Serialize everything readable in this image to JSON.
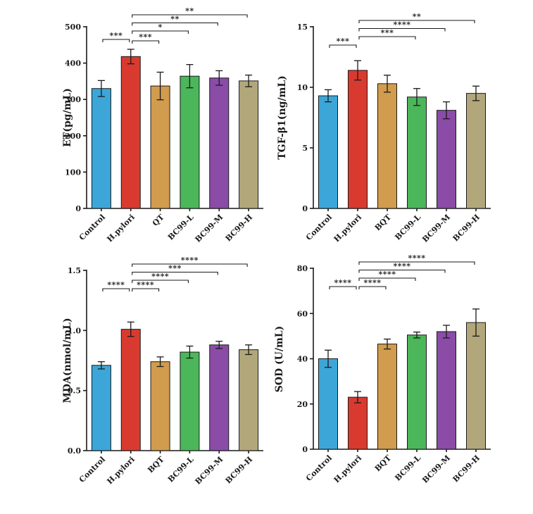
{
  "figure": {
    "colors": {
      "Control": "#3ca6d8",
      "H.pylori": "#d93a2f",
      "treatment_tan": "#d19c4e",
      "BC99-L": "#4cb65a",
      "BC99-M": "#8a4ca6",
      "BC99-H": "#b1a77a"
    }
  },
  "chart_data": [
    {
      "id": "et",
      "type": "bar",
      "ylabel": "ET(pg/mL)",
      "ylim": [
        0,
        500
      ],
      "yticks": [
        "0",
        "100",
        "200",
        "300",
        "400",
        "500"
      ],
      "categories": [
        "Control",
        "H.pylori",
        "QT",
        "BC99-L",
        "BC99-M",
        "BC99-H"
      ],
      "values": [
        330,
        418,
        337,
        364,
        359,
        351
      ],
      "errors": [
        22,
        20,
        38,
        32,
        20,
        16
      ],
      "significance": [
        {
          "from": 0,
          "to": 1,
          "label": "***"
        },
        {
          "from": 1,
          "to": 2,
          "label": "***"
        },
        {
          "from": 1,
          "to": 3,
          "label": "*"
        },
        {
          "from": 1,
          "to": 4,
          "label": "**"
        },
        {
          "from": 1,
          "to": 5,
          "label": "**"
        }
      ]
    },
    {
      "id": "tgf",
      "type": "bar",
      "ylabel": "TGF-β1(ng/mL)",
      "ylim": [
        0,
        15
      ],
      "yticks": [
        "0",
        "5",
        "10",
        "15"
      ],
      "categories": [
        "Control",
        "H.pylori",
        "BQT",
        "BC99-L",
        "BC99-M",
        "BC99-H"
      ],
      "values": [
        9.3,
        11.4,
        10.3,
        9.2,
        8.1,
        9.5
      ],
      "errors": [
        0.5,
        0.8,
        0.7,
        0.7,
        0.7,
        0.6
      ],
      "significance": [
        {
          "from": 0,
          "to": 1,
          "label": "***"
        },
        {
          "from": 1,
          "to": 3,
          "label": "***"
        },
        {
          "from": 1,
          "to": 4,
          "label": "****"
        },
        {
          "from": 1,
          "to": 5,
          "label": "**"
        }
      ]
    },
    {
      "id": "mda",
      "type": "bar",
      "ylabel": "MDA(nmol/mL)",
      "ylim": [
        0,
        1.5
      ],
      "yticks": [
        "0.0",
        "0.5",
        "1.0",
        "1.5"
      ],
      "categories": [
        "Control",
        "H.pylori",
        "BQT",
        "BC99-L",
        "BC99-M",
        "BC99-H"
      ],
      "values": [
        0.71,
        1.01,
        0.74,
        0.82,
        0.88,
        0.84
      ],
      "errors": [
        0.03,
        0.06,
        0.04,
        0.05,
        0.03,
        0.04
      ],
      "significance": [
        {
          "from": 0,
          "to": 1,
          "label": "****"
        },
        {
          "from": 1,
          "to": 2,
          "label": "****"
        },
        {
          "from": 1,
          "to": 3,
          "label": "****"
        },
        {
          "from": 1,
          "to": 4,
          "label": "***"
        },
        {
          "from": 1,
          "to": 5,
          "label": "****"
        }
      ]
    },
    {
      "id": "sod",
      "type": "bar",
      "ylabel": "SOD (U/mL)",
      "ylim": [
        0,
        80
      ],
      "yticks": [
        "0",
        "20",
        "40",
        "60",
        "80"
      ],
      "categories": [
        "Control",
        "H.pylori",
        "BQT",
        "BC99-L",
        "BC99-M",
        "BC99-H"
      ],
      "values": [
        40,
        23,
        46.5,
        50.5,
        52,
        56
      ],
      "errors": [
        3.8,
        2.5,
        2.2,
        1.3,
        2.8,
        6.0
      ],
      "significance": [
        {
          "from": 0,
          "to": 1,
          "label": "****"
        },
        {
          "from": 1,
          "to": 2,
          "label": "****"
        },
        {
          "from": 1,
          "to": 3,
          "label": "****"
        },
        {
          "from": 1,
          "to": 4,
          "label": "****"
        },
        {
          "from": 1,
          "to": 5,
          "label": "****"
        }
      ]
    }
  ]
}
